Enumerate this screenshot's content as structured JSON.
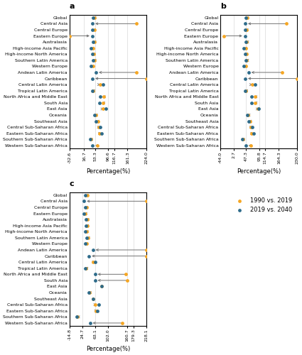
{
  "chart_data": [
    {
      "type": "dumbbell",
      "orientation": "horizontal",
      "title": "a",
      "x_label": "Percentage(%)",
      "categories": [
        "Global",
        "Central Asia",
        "Central Europe",
        "Eastern Europe",
        "Australasia",
        "High-income Asia Pacific",
        "High-income North America",
        "Southern Latin America",
        "Western Europe",
        "Andean Latin America",
        "Caribbean",
        "Central Latin America",
        "Tropical Latin America",
        "North Africa and Middle East",
        "South Asia",
        "East Asia",
        "Oceania",
        "Southeast Asia",
        "Central Sub-Saharan Africa",
        "Eastern Sub-Saharan Africa",
        "Southern Sub-Saharan Africa",
        "Western Sub-Saharan Africa"
      ],
      "series": [
        {
          "name": "1990 vs. 2019",
          "color": "#F5A623",
          "values": [
            52,
            190,
            50,
            -32.6,
            50,
            47,
            49,
            50,
            46,
            190,
            224,
            70,
            47,
            83,
            80,
            80,
            55,
            62,
            65,
            68,
            40,
            60
          ]
        },
        {
          "name": "2019 vs. 2040",
          "color": "#2E6B8A",
          "values": [
            47,
            45,
            45,
            43,
            47,
            40,
            44,
            47,
            40,
            57,
            45,
            79,
            43,
            70,
            68,
            90,
            52,
            57,
            70,
            74,
            36,
            45
          ]
        }
      ],
      "xlim": [
        -32.6,
        224.0
      ],
      "xticks": [
        -32.6,
        16.7,
        53.3,
        96.6,
        116.7,
        161.3,
        {
          "value": 224,
          "label": "224.0"
        }
      ],
      "grid": true,
      "legend": "upper right"
    },
    {
      "type": "dumbbell",
      "orientation": "horizontal",
      "title": "b",
      "x_label": "Percentage(%)",
      "categories": [
        "Global",
        "Central Asia",
        "Central Europe",
        "Eastern Europe",
        "Australasia",
        "High-income Asia Pacific",
        "High-income North America",
        "Southern Latin America",
        "Western Europe",
        "Andean Latin America",
        "Caribbean",
        "Central Latin America",
        "Tropical Latin America",
        "North Africa and Middle East",
        "South Asia",
        "East Asia",
        "Oceania",
        "Southeast Asia",
        "Central Sub-Saharan Africa",
        "Eastern Sub-Saharan Africa",
        "Southern Sub-Saharan Africa",
        "Western Sub-Saharan Africa"
      ],
      "series": [
        {
          "name": "1990 vs. 2019",
          "color": "#F5A623",
          "values": [
            52,
            190,
            50,
            -32.6,
            50,
            47,
            49,
            50,
            46,
            175,
            230,
            70,
            47,
            80,
            80,
            90,
            55,
            62,
            65,
            68,
            37,
            65
          ]
        },
        {
          "name": "2019 vs. 2040",
          "color": "#2E6B8A",
          "values": [
            47,
            45,
            45,
            43,
            47,
            40,
            44,
            47,
            40,
            57,
            45,
            79,
            43,
            68,
            68,
            93,
            52,
            57,
            70,
            74,
            33,
            47
          ]
        }
      ],
      "xlim": [
        -44.0,
        230.0
      ],
      "xticks": [
        {
          "value": -44,
          "label": "-44.0"
        },
        2.7,
        47.3,
        95.8,
        114.7,
        164.3,
        {
          "value": 230,
          "label": "230.0"
        }
      ],
      "grid": true
    },
    {
      "type": "dumbbell",
      "orientation": "horizontal",
      "title": "c",
      "x_label": "Percentage(%)",
      "categories": [
        "Global",
        "Central Asia",
        "Central Europe",
        "Eastern Europe",
        "Australasia",
        "High-income Asia Pacific",
        "High-income North America",
        "Southern Latin America",
        "Western Europe",
        "Andean Latin America",
        "Caribbean",
        "Central Latin America",
        "Tropical Latin America",
        "North Africa and Middle East",
        "South Asia",
        "East Asia",
        "Oceania",
        "Southeast Asia",
        "Central Sub-Saharan Africa",
        "Eastern Sub-Saharan Africa",
        "Southern Sub-Saharan Africa",
        "Western Sub-Saharan Africa"
      ],
      "series": [
        {
          "name": "1990 vs. 2019",
          "color": "#F5A623",
          "values": [
            40,
            218,
            38,
            34,
            40,
            40,
            38,
            42,
            38,
            218,
            218,
            58,
            36,
            155,
            160,
            82,
            47,
            58,
            63,
            65,
            10,
            145
          ]
        },
        {
          "name": "2019 vs. 2040",
          "color": "#2E6B8A",
          "values": [
            34,
            30,
            33,
            30,
            36,
            35,
            34,
            38,
            33,
            57,
            45,
            63,
            33,
            63,
            63,
            82,
            43,
            58,
            75,
            70,
            8,
            48
          ]
        }
      ],
      "xlim": [
        -14.8,
        218.1
      ],
      "xticks": [
        -14.8,
        24.7,
        63.1,
        {
          "value": 102,
          "label": "102.0"
        },
        160.7,
        179.3,
        218.1
      ],
      "grid": true
    }
  ]
}
